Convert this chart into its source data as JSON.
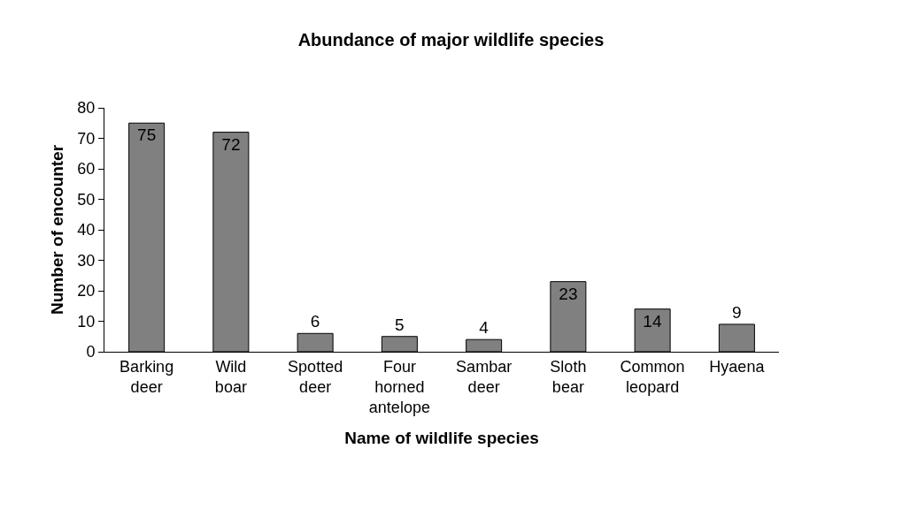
{
  "chart_data": {
    "type": "bar",
    "title": "Abundance of major wildlife species",
    "xlabel": "Name of wildlife species",
    "ylabel": "Number of encounter",
    "categories": [
      "Barking deer",
      "Wild boar",
      "Spotted deer",
      "Four horned antelope",
      "Sambar deer",
      "Sloth bear",
      "Common leopard",
      "Hyaena"
    ],
    "values": [
      75,
      72,
      6,
      5,
      4,
      23,
      14,
      9
    ],
    "color": "#808080",
    "data_labels": true,
    "ylim": [
      0,
      80
    ],
    "yticks": [
      0,
      10,
      20,
      30,
      40,
      50,
      60,
      70,
      80
    ],
    "grid": false,
    "legend": false
  }
}
